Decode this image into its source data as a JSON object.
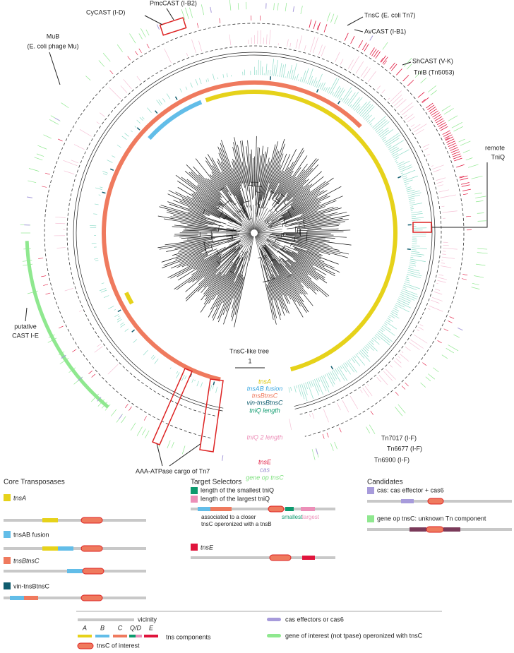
{
  "annotations": {
    "cycast": "CyCAST (I-D)",
    "pmccast": "PmcCAST (I-B2)",
    "tnsc_tn7": "TnsC (E. coli Tn7)",
    "avcast": "AvCAST (I-B1)",
    "shcast": "ShCAST (V-K)",
    "tnib": "TniB (Tn5053)",
    "mub": "MuB",
    "mub_sub": "(E. coli phage Mu)",
    "remote": "remote",
    "remote_sub": "TniQ",
    "putative": "putative",
    "putative_sub": "CAST I-E",
    "tn7017": "Tn7017 (I-F)",
    "tn6677": "Tn6677 (I-F)",
    "tn6900": "Tn6900 (I-F)",
    "aaa": "AAA-ATPase cargo of Tn7",
    "tree": "TnsC-like tree",
    "scale": "1"
  },
  "ring_labels": [
    "tnsA",
    "tnsAB fusion",
    "tnsBtnsC",
    "vin-tnsBtnsC",
    "tniQ length",
    "tniQ 2 length",
    "tnsE",
    "cas",
    "gene op tnsC"
  ],
  "legend": {
    "core": {
      "title": "Core Transposases",
      "items": [
        "tnsA",
        "tnsAB fusion",
        "tnsBtnsC",
        "vin-tnsBtnsC"
      ]
    },
    "target": {
      "title": "Target Selectors",
      "smallest_tniq": "length of the smallest tniQ",
      "largest_tniq": "length of the largest tniQ",
      "assoc_1": "associated to a closer",
      "assoc_2": "tnsC operonized with a tnsB",
      "smallest": "smallest",
      "largest": "largest",
      "tnse": "tnsE"
    },
    "candidates": {
      "title": "Candidates",
      "cas": "cas: cas effector + cas6",
      "gene": "gene op tnsC: unknown Tn component"
    }
  },
  "key": {
    "vicinity": "vicinity",
    "letters": [
      "A",
      "B",
      "C",
      "Q/D",
      "E"
    ],
    "tns_components": "tns components",
    "tnsc_interest": "tnsC of interest",
    "cas": "cas effectors or cas6",
    "gene": "gene of interest (not tpase) operonized with tnsC"
  }
}
